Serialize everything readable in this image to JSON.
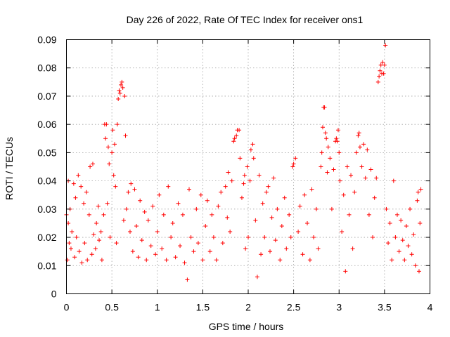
{
  "chart_data": {
    "type": "scatter",
    "title": "Day 226 of 2022, Rate Of TEC Index for receiver ons1",
    "xlabel": "GPS time / hours",
    "ylabel": "ROTI / TECUs",
    "xlim": [
      0,
      4
    ],
    "ylim": [
      0,
      0.09
    ],
    "xticks": [
      0,
      0.5,
      1,
      1.5,
      2,
      2.5,
      3,
      3.5,
      4
    ],
    "xtick_labels": [
      "0",
      "0.5",
      "1",
      "1.5",
      "2",
      "2.5",
      "3",
      "3.5",
      "4"
    ],
    "yticks": [
      0,
      0.01,
      0.02,
      0.03,
      0.04,
      0.05,
      0.06,
      0.07,
      0.08,
      0.09
    ],
    "ytick_labels": [
      "0",
      "0.01",
      "0.02",
      "0.03",
      "0.04",
      "0.05",
      "0.06",
      "0.07",
      "0.08",
      "0.09"
    ],
    "grid": true,
    "marker": "+",
    "color": "#ff0000",
    "series": [
      {
        "points": [
          [
            0.0,
            0.028
          ],
          [
            0.01,
            0.012
          ],
          [
            0.02,
            0.04
          ],
          [
            0.02,
            0.025
          ],
          [
            0.03,
            0.018
          ],
          [
            0.04,
            0.03
          ],
          [
            0.05,
            0.016
          ],
          [
            0.06,
            0.022
          ],
          [
            0.08,
            0.039
          ],
          [
            0.09,
            0.013
          ],
          [
            0.1,
            0.034
          ],
          [
            0.11,
            0.02
          ],
          [
            0.13,
            0.042
          ],
          [
            0.14,
            0.015
          ],
          [
            0.16,
            0.038
          ],
          [
            0.17,
            0.011
          ],
          [
            0.19,
            0.032
          ],
          [
            0.2,
            0.018
          ],
          [
            0.22,
            0.036
          ],
          [
            0.23,
            0.012
          ],
          [
            0.25,
            0.028
          ],
          [
            0.26,
            0.045
          ],
          [
            0.28,
            0.014
          ],
          [
            0.29,
            0.046
          ],
          [
            0.3,
            0.021
          ],
          [
            0.32,
            0.016
          ],
          [
            0.33,
            0.025
          ],
          [
            0.35,
            0.031
          ],
          [
            0.36,
            0.019
          ],
          [
            0.38,
            0.022
          ],
          [
            0.39,
            0.012
          ],
          [
            0.41,
            0.028
          ],
          [
            0.42,
            0.06
          ],
          [
            0.43,
            0.055
          ],
          [
            0.44,
            0.06
          ],
          [
            0.45,
            0.032
          ],
          [
            0.46,
            0.052
          ],
          [
            0.47,
            0.046
          ],
          [
            0.48,
            0.02
          ],
          [
            0.5,
            0.05
          ],
          [
            0.51,
            0.058
          ],
          [
            0.52,
            0.042
          ],
          [
            0.53,
            0.053
          ],
          [
            0.54,
            0.038
          ],
          [
            0.55,
            0.018
          ],
          [
            0.56,
            0.06
          ],
          [
            0.57,
            0.069
          ],
          [
            0.58,
            0.072
          ],
          [
            0.59,
            0.071
          ],
          [
            0.6,
            0.074
          ],
          [
            0.61,
            0.075
          ],
          [
            0.62,
            0.073
          ],
          [
            0.63,
            0.026
          ],
          [
            0.64,
            0.07
          ],
          [
            0.65,
            0.056
          ],
          [
            0.66,
            0.03
          ],
          [
            0.68,
            0.036
          ],
          [
            0.7,
            0.022
          ],
          [
            0.71,
            0.039
          ],
          [
            0.73,
            0.015
          ],
          [
            0.75,
            0.037
          ],
          [
            0.77,
            0.024
          ],
          [
            0.79,
            0.013
          ],
          [
            0.81,
            0.033
          ],
          [
            0.83,
            0.019
          ],
          [
            0.86,
            0.029
          ],
          [
            0.88,
            0.012
          ],
          [
            0.9,
            0.026
          ],
          [
            0.93,
            0.017
          ],
          [
            0.95,
            0.031
          ],
          [
            0.98,
            0.014
          ],
          [
            1.0,
            0.022
          ],
          [
            1.02,
            0.035
          ],
          [
            1.05,
            0.016
          ],
          [
            1.07,
            0.028
          ],
          [
            1.1,
            0.012
          ],
          [
            1.12,
            0.038
          ],
          [
            1.15,
            0.02
          ],
          [
            1.17,
            0.025
          ],
          [
            1.2,
            0.013
          ],
          [
            1.23,
            0.032
          ],
          [
            1.25,
            0.017
          ],
          [
            1.28,
            0.028
          ],
          [
            1.3,
            0.011
          ],
          [
            1.33,
            0.005
          ],
          [
            1.35,
            0.037
          ],
          [
            1.37,
            0.02
          ],
          [
            1.4,
            0.015
          ],
          [
            1.43,
            0.03
          ],
          [
            1.45,
            0.018
          ],
          [
            1.48,
            0.035
          ],
          [
            1.5,
            0.012
          ],
          [
            1.53,
            0.024
          ],
          [
            1.55,
            0.033
          ],
          [
            1.58,
            0.015
          ],
          [
            1.6,
            0.028
          ],
          [
            1.62,
            0.02
          ],
          [
            1.65,
            0.012
          ],
          [
            1.67,
            0.031
          ],
          [
            1.7,
            0.036
          ],
          [
            1.72,
            0.018
          ],
          [
            1.75,
            0.038
          ],
          [
            1.77,
            0.027
          ],
          [
            1.78,
            0.043
          ],
          [
            1.8,
            0.022
          ],
          [
            1.82,
            0.04
          ],
          [
            1.84,
            0.054
          ],
          [
            1.85,
            0.055
          ],
          [
            1.87,
            0.056
          ],
          [
            1.88,
            0.058
          ],
          [
            1.9,
            0.058
          ],
          [
            1.91,
            0.048
          ],
          [
            1.93,
            0.034
          ],
          [
            1.95,
            0.039
          ],
          [
            1.96,
            0.042
          ],
          [
            1.97,
            0.016
          ],
          [
            1.99,
            0.045
          ],
          [
            2.0,
            0.02
          ],
          [
            2.02,
            0.04
          ],
          [
            2.03,
            0.051
          ],
          [
            2.05,
            0.053
          ],
          [
            2.06,
            0.048
          ],
          [
            2.08,
            0.026
          ],
          [
            2.1,
            0.006
          ],
          [
            2.12,
            0.042
          ],
          [
            2.14,
            0.014
          ],
          [
            2.16,
            0.032
          ],
          [
            2.18,
            0.02
          ],
          [
            2.2,
            0.036
          ],
          [
            2.22,
            0.038
          ],
          [
            2.24,
            0.015
          ],
          [
            2.26,
            0.027
          ],
          [
            2.28,
            0.041
          ],
          [
            2.3,
            0.019
          ],
          [
            2.32,
            0.03
          ],
          [
            2.35,
            0.012
          ],
          [
            2.37,
            0.024
          ],
          [
            2.4,
            0.034
          ],
          [
            2.42,
            0.016
          ],
          [
            2.45,
            0.028
          ],
          [
            2.47,
            0.02
          ],
          [
            2.49,
            0.045
          ],
          [
            2.5,
            0.046
          ],
          [
            2.52,
            0.048
          ],
          [
            2.55,
            0.022
          ],
          [
            2.57,
            0.031
          ],
          [
            2.6,
            0.014
          ],
          [
            2.62,
            0.035
          ],
          [
            2.65,
            0.025
          ],
          [
            2.68,
            0.012
          ],
          [
            2.7,
            0.037
          ],
          [
            2.72,
            0.02
          ],
          [
            2.75,
            0.03
          ],
          [
            2.77,
            0.016
          ],
          [
            2.8,
            0.045
          ],
          [
            2.81,
            0.05
          ],
          [
            2.82,
            0.059
          ],
          [
            2.83,
            0.066
          ],
          [
            2.84,
            0.066
          ],
          [
            2.85,
            0.057
          ],
          [
            2.86,
            0.055
          ],
          [
            2.87,
            0.043
          ],
          [
            2.88,
            0.052
          ],
          [
            2.9,
            0.048
          ],
          [
            2.92,
            0.03
          ],
          [
            2.94,
            0.044
          ],
          [
            2.96,
            0.054
          ],
          [
            2.97,
            0.055
          ],
          [
            2.98,
            0.054
          ],
          [
            2.99,
            0.058
          ],
          [
            3.0,
            0.05
          ],
          [
            3.01,
            0.04
          ],
          [
            3.03,
            0.022
          ],
          [
            3.05,
            0.035
          ],
          [
            3.07,
            0.008
          ],
          [
            3.09,
            0.045
          ],
          [
            3.11,
            0.028
          ],
          [
            3.13,
            0.042
          ],
          [
            3.15,
            0.016
          ],
          [
            3.17,
            0.036
          ],
          [
            3.19,
            0.05
          ],
          [
            3.21,
            0.056
          ],
          [
            3.22,
            0.057
          ],
          [
            3.23,
            0.052
          ],
          [
            3.25,
            0.045
          ],
          [
            3.27,
            0.053
          ],
          [
            3.29,
            0.041
          ],
          [
            3.31,
            0.051
          ],
          [
            3.33,
            0.028
          ],
          [
            3.35,
            0.044
          ],
          [
            3.37,
            0.02
          ],
          [
            3.39,
            0.034
          ],
          [
            3.41,
            0.041
          ],
          [
            3.43,
            0.075
          ],
          [
            3.44,
            0.077
          ],
          [
            3.45,
            0.079
          ],
          [
            3.46,
            0.081
          ],
          [
            3.47,
            0.078
          ],
          [
            3.48,
            0.082
          ],
          [
            3.49,
            0.078
          ],
          [
            3.5,
            0.081
          ],
          [
            3.51,
            0.088
          ],
          [
            3.52,
            0.03
          ],
          [
            3.54,
            0.018
          ],
          [
            3.56,
            0.025
          ],
          [
            3.58,
            0.012
          ],
          [
            3.6,
            0.04
          ],
          [
            3.62,
            0.02
          ],
          [
            3.64,
            0.028
          ],
          [
            3.66,
            0.015
          ],
          [
            3.68,
            0.026
          ],
          [
            3.7,
            0.019
          ],
          [
            3.72,
            0.012
          ],
          [
            3.74,
            0.024
          ],
          [
            3.76,
            0.017
          ],
          [
            3.78,
            0.03
          ],
          [
            3.8,
            0.014
          ],
          [
            3.82,
            0.021
          ],
          [
            3.84,
            0.01
          ],
          [
            3.86,
            0.033
          ],
          [
            3.87,
            0.036
          ],
          [
            3.88,
            0.008
          ],
          [
            3.89,
            0.025
          ],
          [
            3.9,
            0.037
          ]
        ]
      }
    ]
  }
}
